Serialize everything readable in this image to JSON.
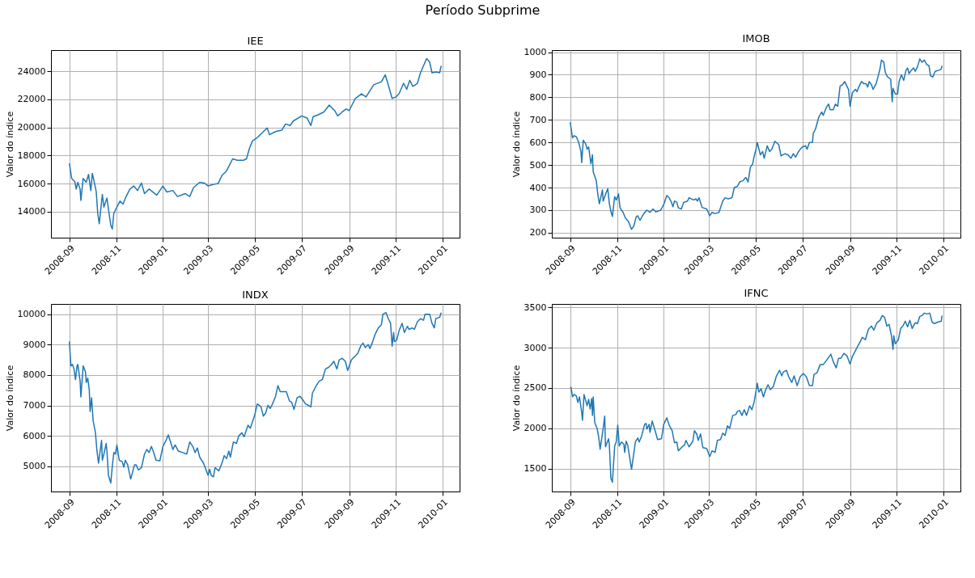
{
  "chart_data": [
    {
      "type": "line",
      "title": "IEE",
      "ylabel": "Valor do índice",
      "annotations": [
        "Período Subprime"
      ],
      "color": "#1f77b4",
      "grid": true,
      "x": [
        "2008-09-01",
        "2008-09-04",
        "2008-09-08",
        "2008-09-10",
        "2008-09-12",
        "2008-09-15",
        "2008-09-16",
        "2008-09-19",
        "2008-09-23",
        "2008-09-26",
        "2008-09-29",
        "2008-10-01",
        "2008-10-06",
        "2008-10-08",
        "2008-10-10",
        "2008-10-14",
        "2008-10-16",
        "2008-10-20",
        "2008-10-23",
        "2008-10-25",
        "2008-10-27",
        "2008-10-29",
        "2008-11-03",
        "2008-11-06",
        "2008-11-10",
        "2008-11-14",
        "2008-11-19",
        "2008-11-24",
        "2008-11-29",
        "2008-12-04",
        "2008-12-08",
        "2008-12-14",
        "2008-12-24",
        "2009-01-01",
        "2009-01-06",
        "2009-01-14",
        "2009-01-20",
        "2009-01-30",
        "2009-02-05",
        "2009-02-10",
        "2009-02-18",
        "2009-02-24",
        "2009-03-01",
        "2009-03-08",
        "2009-03-14",
        "2009-03-19",
        "2009-03-25",
        "2009-04-02",
        "2009-04-08",
        "2009-04-16",
        "2009-04-20",
        "2009-04-24",
        "2009-04-28",
        "2009-05-04",
        "2009-05-10",
        "2009-05-17",
        "2009-05-20",
        "2009-05-28",
        "2009-06-05",
        "2009-06-10",
        "2009-06-16",
        "2009-06-20",
        "2009-07-01",
        "2009-07-08",
        "2009-07-13",
        "2009-07-16",
        "2009-07-22",
        "2009-07-30",
        "2009-08-06",
        "2009-08-13",
        "2009-08-17",
        "2009-08-23",
        "2009-08-28",
        "2009-09-01",
        "2009-09-09",
        "2009-09-17",
        "2009-09-23",
        "2009-10-03",
        "2009-10-13",
        "2009-10-18",
        "2009-10-22",
        "2009-10-27",
        "2009-11-01",
        "2009-11-05",
        "2009-11-11",
        "2009-11-15",
        "2009-11-19",
        "2009-11-23",
        "2009-11-29",
        "2009-12-03",
        "2009-12-11",
        "2009-12-15",
        "2009-12-18",
        "2009-12-24",
        "2009-12-28",
        "2009-12-30"
      ],
      "values": [
        17440,
        16370,
        16150,
        15610,
        16090,
        15610,
        14800,
        16370,
        16090,
        16650,
        15500,
        16730,
        15440,
        13890,
        13140,
        15230,
        14320,
        14970,
        13790,
        13030,
        12770,
        13890,
        14430,
        14750,
        14540,
        15080,
        15610,
        15830,
        15500,
        16040,
        15290,
        15610,
        15180,
        15830,
        15400,
        15510,
        15080,
        15290,
        15080,
        15720,
        16090,
        16040,
        15830,
        15940,
        16000,
        16580,
        16900,
        17760,
        17660,
        17660,
        17760,
        18520,
        19050,
        19270,
        19590,
        19960,
        19480,
        19700,
        19800,
        20240,
        20130,
        20450,
        20820,
        20670,
        20130,
        20770,
        20880,
        21100,
        21590,
        21200,
        20820,
        21100,
        21310,
        21200,
        22060,
        22390,
        22170,
        23030,
        23250,
        23740,
        23030,
        22060,
        22170,
        22390,
        23140,
        22710,
        23350,
        22920,
        23140,
        23890,
        24900,
        24650,
        23890,
        23940,
        23890,
        24390
      ],
      "xlim": [
        "2008-08-08",
        "2010-01-23"
      ],
      "xticks": [
        "2008-09",
        "2008-11",
        "2009-01",
        "2009-03",
        "2009-05",
        "2009-07",
        "2009-09",
        "2009-11",
        "2010-01"
      ],
      "ylim": [
        12150,
        25500
      ],
      "yticks": [
        14000,
        16000,
        18000,
        20000,
        22000,
        24000
      ]
    },
    {
      "type": "line",
      "title": "IMOB",
      "ylabel": "Valor do índice",
      "color": "#1f77b4",
      "grid": true,
      "x": [
        "2008-09-01",
        "2008-09-04",
        "2008-09-06",
        "2008-09-09",
        "2008-09-12",
        "2008-09-15",
        "2008-09-16",
        "2008-09-18",
        "2008-09-21",
        "2008-09-23",
        "2008-09-25",
        "2008-09-28",
        "2008-09-30",
        "2008-10-01",
        "2008-10-05",
        "2008-10-07",
        "2008-10-09",
        "2008-10-13",
        "2008-10-14",
        "2008-10-17",
        "2008-10-20",
        "2008-10-22",
        "2008-10-24",
        "2008-10-26",
        "2008-10-29",
        "2008-10-31",
        "2008-11-03",
        "2008-11-05",
        "2008-11-09",
        "2008-11-12",
        "2008-11-16",
        "2008-11-20",
        "2008-11-23",
        "2008-11-26",
        "2008-11-28",
        "2008-12-01",
        "2008-12-06",
        "2008-12-10",
        "2008-12-14",
        "2008-12-18",
        "2008-12-22",
        "2008-12-28",
        "2009-01-01",
        "2009-01-05",
        "2009-01-08",
        "2009-01-11",
        "2009-01-13",
        "2009-01-15",
        "2009-01-18",
        "2009-01-20",
        "2009-01-24",
        "2009-01-27",
        "2009-02-01",
        "2009-02-03",
        "2009-02-09",
        "2009-02-12",
        "2009-02-14",
        "2009-02-16",
        "2009-02-20",
        "2009-02-26",
        "2009-03-02",
        "2009-03-05",
        "2009-03-09",
        "2009-03-14",
        "2009-03-19",
        "2009-03-22",
        "2009-03-26",
        "2009-03-31",
        "2009-04-03",
        "2009-04-07",
        "2009-04-10",
        "2009-04-14",
        "2009-04-18",
        "2009-04-21",
        "2009-04-24",
        "2009-04-27",
        "2009-04-29",
        "2009-05-01",
        "2009-05-03",
        "2009-05-07",
        "2009-05-10",
        "2009-05-12",
        "2009-05-16",
        "2009-05-19",
        "2009-05-22",
        "2009-05-26",
        "2009-05-31",
        "2009-06-03",
        "2009-06-08",
        "2009-06-12",
        "2009-06-16",
        "2009-06-19",
        "2009-06-22",
        "2009-06-25",
        "2009-06-28",
        "2009-07-01",
        "2009-07-05",
        "2009-07-07",
        "2009-07-10",
        "2009-07-14",
        "2009-07-15",
        "2009-07-18",
        "2009-07-22",
        "2009-07-26",
        "2009-07-28",
        "2009-08-01",
        "2009-08-04",
        "2009-08-06",
        "2009-08-10",
        "2009-08-13",
        "2009-08-16",
        "2009-08-19",
        "2009-08-22",
        "2009-08-25",
        "2009-08-30",
        "2009-09-01",
        "2009-09-04",
        "2009-09-08",
        "2009-09-10",
        "2009-09-13",
        "2009-09-16",
        "2009-09-19",
        "2009-09-22",
        "2009-09-24",
        "2009-09-26",
        "2009-09-29",
        "2009-10-01",
        "2009-10-05",
        "2009-10-07",
        "2009-10-10",
        "2009-10-12",
        "2009-10-15",
        "2009-10-17",
        "2009-10-20",
        "2009-10-24",
        "2009-10-26",
        "2009-10-27",
        "2009-10-30",
        "2009-11-02",
        "2009-11-04",
        "2009-11-07",
        "2009-11-10",
        "2009-11-13",
        "2009-11-15",
        "2009-11-17",
        "2009-11-20",
        "2009-11-23",
        "2009-11-25",
        "2009-11-28",
        "2009-12-01",
        "2009-12-04",
        "2009-12-07",
        "2009-12-10",
        "2009-12-13",
        "2009-12-15",
        "2009-12-18",
        "2009-12-21",
        "2009-12-26",
        "2009-12-29",
        "2009-12-30"
      ],
      "values": [
        690,
        620,
        630,
        625,
        600,
        560,
        510,
        610,
        595,
        570,
        580,
        505,
        545,
        470,
        430,
        370,
        328,
        390,
        340,
        370,
        395,
        330,
        295,
        272,
        360,
        345,
        372,
        310,
        290,
        265,
        250,
        215,
        230,
        270,
        275,
        255,
        285,
        300,
        290,
        305,
        292,
        300,
        325,
        365,
        355,
        335,
        315,
        340,
        335,
        310,
        305,
        335,
        340,
        355,
        345,
        350,
        340,
        355,
        312,
        305,
        275,
        290,
        285,
        290,
        340,
        355,
        350,
        355,
        400,
        405,
        425,
        430,
        445,
        425,
        490,
        505,
        540,
        565,
        600,
        545,
        560,
        530,
        585,
        560,
        570,
        605,
        590,
        540,
        550,
        545,
        530,
        550,
        535,
        555,
        570,
        580,
        585,
        570,
        600,
        600,
        640,
        660,
        710,
        735,
        720,
        755,
        770,
        745,
        745,
        770,
        760,
        850,
        855,
        870,
        835,
        760,
        820,
        835,
        825,
        850,
        870,
        860,
        860,
        845,
        870,
        855,
        835,
        860,
        885,
        925,
        965,
        955,
        910,
        890,
        880,
        780,
        840,
        815,
        815,
        870,
        900,
        875,
        920,
        930,
        905,
        920,
        930,
        915,
        935,
        970,
        955,
        965,
        945,
        940,
        895,
        890,
        915,
        920,
        925,
        940
      ],
      "xlim": [
        "2008-08-08",
        "2010-01-23"
      ],
      "xticks": [
        "2008-09",
        "2008-11",
        "2009-01",
        "2009-03",
        "2009-05",
        "2009-07",
        "2009-09",
        "2009-11",
        "2010-01"
      ],
      "ylim": [
        178,
        1009
      ],
      "yticks": [
        200,
        300,
        400,
        500,
        600,
        700,
        800,
        900,
        1000
      ]
    },
    {
      "type": "line",
      "title": "INDX",
      "ylabel": "Valor do índice",
      "color": "#1f77b4",
      "grid": true,
      "x": [
        "2008-09-01",
        "2008-09-03",
        "2008-09-05",
        "2008-09-07",
        "2008-09-09",
        "2008-09-11",
        "2008-09-12",
        "2008-09-15",
        "2008-09-16",
        "2008-09-19",
        "2008-09-22",
        "2008-09-23",
        "2008-09-25",
        "2008-09-27",
        "2008-09-28",
        "2008-09-30",
        "2008-10-02",
        "2008-10-05",
        "2008-10-07",
        "2008-10-09",
        "2008-10-13",
        "2008-10-14",
        "2008-10-16",
        "2008-10-19",
        "2008-10-20",
        "2008-10-22",
        "2008-10-25",
        "2008-10-27",
        "2008-10-29",
        "2008-10-31",
        "2008-11-02",
        "2008-11-05",
        "2008-11-09",
        "2008-11-11",
        "2008-11-13",
        "2008-11-16",
        "2008-11-20",
        "2008-11-25",
        "2008-11-27",
        "2008-11-30",
        "2008-12-04",
        "2008-12-08",
        "2008-12-11",
        "2008-12-14",
        "2008-12-17",
        "2008-12-20",
        "2008-12-23",
        "2008-12-28",
        "2009-01-01",
        "2009-01-05",
        "2009-01-08",
        "2009-01-11",
        "2009-01-14",
        "2009-01-17",
        "2009-01-21",
        "2009-01-27",
        "2009-02-01",
        "2009-02-05",
        "2009-02-09",
        "2009-02-12",
        "2009-02-15",
        "2009-02-18",
        "2009-02-23",
        "2009-03-01",
        "2009-03-03",
        "2009-03-05",
        "2009-03-08",
        "2009-03-10",
        "2009-03-15",
        "2009-03-19",
        "2009-03-22",
        "2009-03-25",
        "2009-03-28",
        "2009-03-30",
        "2009-04-03",
        "2009-04-07",
        "2009-04-10",
        "2009-04-14",
        "2009-04-17",
        "2009-04-22",
        "2009-04-25",
        "2009-05-01",
        "2009-05-04",
        "2009-05-07",
        "2009-05-09",
        "2009-05-12",
        "2009-05-15",
        "2009-05-18",
        "2009-05-21",
        "2009-05-24",
        "2009-05-28",
        "2009-05-31",
        "2009-06-03",
        "2009-06-07",
        "2009-06-11",
        "2009-06-15",
        "2009-06-18",
        "2009-06-21",
        "2009-06-25",
        "2009-06-29",
        "2009-07-02",
        "2009-07-06",
        "2009-07-10",
        "2009-07-13",
        "2009-07-15",
        "2009-07-20",
        "2009-07-24",
        "2009-07-28",
        "2009-08-01",
        "2009-08-05",
        "2009-08-09",
        "2009-08-12",
        "2009-08-16",
        "2009-08-19",
        "2009-08-23",
        "2009-08-27",
        "2009-08-30",
        "2009-09-04",
        "2009-09-08",
        "2009-09-12",
        "2009-09-16",
        "2009-09-19",
        "2009-09-22",
        "2009-09-26",
        "2009-09-28",
        "2009-10-01",
        "2009-10-05",
        "2009-10-09",
        "2009-10-13",
        "2009-10-15",
        "2009-10-19",
        "2009-10-22",
        "2009-10-25",
        "2009-10-27",
        "2009-10-29",
        "2009-10-30",
        "2009-11-02",
        "2009-11-05",
        "2009-11-09",
        "2009-11-12",
        "2009-11-16",
        "2009-11-18",
        "2009-11-22",
        "2009-11-25",
        "2009-11-29",
        "2009-12-03",
        "2009-12-07",
        "2009-12-09",
        "2009-12-15",
        "2009-12-18",
        "2009-12-21",
        "2009-12-23",
        "2009-12-28",
        "2009-12-30"
      ],
      "values": [
        9100,
        8300,
        8350,
        8200,
        7850,
        8300,
        8350,
        7800,
        7280,
        8300,
        8100,
        7750,
        7900,
        7500,
        6800,
        7250,
        6500,
        6100,
        5500,
        5100,
        5850,
        5200,
        5400,
        5750,
        5500,
        4700,
        4450,
        5000,
        5450,
        5400,
        5700,
        5200,
        5150,
        4970,
        5200,
        5050,
        4580,
        5050,
        5050,
        4880,
        4950,
        5400,
        5550,
        5450,
        5650,
        5450,
        5200,
        5180,
        5650,
        5850,
        6030,
        5800,
        5550,
        5700,
        5500,
        5450,
        5400,
        5800,
        5650,
        5450,
        5600,
        5300,
        5100,
        4700,
        4900,
        4700,
        4650,
        4950,
        4850,
        5100,
        5350,
        5250,
        5500,
        5300,
        5800,
        5750,
        6000,
        6100,
        5970,
        6350,
        6250,
        6700,
        7050,
        7000,
        6950,
        6650,
        6750,
        7000,
        6900,
        7050,
        7300,
        7650,
        7450,
        7450,
        7450,
        7150,
        7100,
        6870,
        7250,
        7300,
        7200,
        7050,
        7000,
        6950,
        7400,
        7650,
        7800,
        7850,
        8200,
        8250,
        8350,
        8450,
        8200,
        8500,
        8550,
        8450,
        8150,
        8500,
        8600,
        8700,
        8950,
        9050,
        8900,
        9000,
        8870,
        9050,
        9350,
        9550,
        9650,
        10000,
        10050,
        9850,
        9700,
        8950,
        9400,
        9100,
        9150,
        9450,
        9700,
        9400,
        9600,
        9500,
        9550,
        9500,
        9750,
        9850,
        9800,
        10000,
        10000,
        9700,
        9550,
        9850,
        9900,
        10050
      ],
      "xlim": [
        "2008-08-08",
        "2010-01-23"
      ],
      "xticks": [
        "2008-09",
        "2008-11",
        "2009-01",
        "2009-03",
        "2009-05",
        "2009-07",
        "2009-09",
        "2009-11",
        "2010-01"
      ],
      "ylim": [
        4170,
        10336
      ],
      "yticks": [
        5000,
        6000,
        7000,
        8000,
        9000,
        10000
      ]
    },
    {
      "type": "line",
      "title": "IFNC",
      "ylabel": "Valor do índice",
      "color": "#1f77b4",
      "grid": true,
      "x": [
        "2008-09-01",
        "2008-09-02",
        "2008-09-04",
        "2008-09-06",
        "2008-09-09",
        "2008-09-11",
        "2008-09-13",
        "2008-09-15",
        "2008-09-16",
        "2008-09-17",
        "2008-09-19",
        "2008-09-23",
        "2008-09-25",
        "2008-09-27",
        "2008-09-29",
        "2008-09-30",
        "2008-10-01",
        "2008-10-03",
        "2008-10-06",
        "2008-10-08",
        "2008-10-10",
        "2008-10-14",
        "2008-10-16",
        "2008-10-17",
        "2008-10-21",
        "2008-10-22",
        "2008-10-24",
        "2008-10-26",
        "2008-10-29",
        "2008-10-31",
        "2008-11-02",
        "2008-11-04",
        "2008-11-07",
        "2008-11-10",
        "2008-11-11",
        "2008-11-13",
        "2008-11-15",
        "2008-11-20",
        "2008-11-25",
        "2008-11-28",
        "2008-11-30",
        "2008-12-03",
        "2008-12-07",
        "2008-12-09",
        "2008-12-10",
        "2008-12-13",
        "2008-12-14",
        "2008-12-17",
        "2008-12-21",
        "2008-12-24",
        "2008-12-29",
        "2009-01-01",
        "2009-01-05",
        "2009-01-08",
        "2009-01-12",
        "2009-01-15",
        "2009-01-18",
        "2009-01-20",
        "2009-01-25",
        "2009-01-28",
        "2009-01-30",
        "2009-02-03",
        "2009-02-08",
        "2009-02-10",
        "2009-02-13",
        "2009-02-15",
        "2009-02-18",
        "2009-02-21",
        "2009-02-26",
        "2009-03-02",
        "2009-03-05",
        "2009-03-09",
        "2009-03-12",
        "2009-03-16",
        "2009-03-19",
        "2009-03-22",
        "2009-03-25",
        "2009-03-28",
        "2009-04-01",
        "2009-04-05",
        "2009-04-07",
        "2009-04-10",
        "2009-04-13",
        "2009-04-16",
        "2009-04-19",
        "2009-04-23",
        "2009-04-26",
        "2009-04-29",
        "2009-05-02",
        "2009-05-03",
        "2009-05-05",
        "2009-05-08",
        "2009-05-11",
        "2009-05-14",
        "2009-05-17",
        "2009-05-20",
        "2009-05-24",
        "2009-05-28",
        "2009-06-01",
        "2009-06-04",
        "2009-06-06",
        "2009-06-10",
        "2009-06-13",
        "2009-06-17",
        "2009-06-20",
        "2009-06-24",
        "2009-06-28",
        "2009-07-02",
        "2009-07-06",
        "2009-07-10",
        "2009-07-14",
        "2009-07-16",
        "2009-07-20",
        "2009-07-24",
        "2009-07-28",
        "2009-08-01",
        "2009-08-04",
        "2009-08-07",
        "2009-08-10",
        "2009-08-14",
        "2009-08-17",
        "2009-08-20",
        "2009-08-24",
        "2009-08-28",
        "2009-09-01",
        "2009-09-04",
        "2009-09-10",
        "2009-09-14",
        "2009-09-17",
        "2009-09-21",
        "2009-09-25",
        "2009-09-29",
        "2009-10-02",
        "2009-10-06",
        "2009-10-10",
        "2009-10-13",
        "2009-10-16",
        "2009-10-19",
        "2009-10-22",
        "2009-10-25",
        "2009-10-27",
        "2009-10-28",
        "2009-10-30",
        "2009-11-03",
        "2009-11-06",
        "2009-11-09",
        "2009-11-12",
        "2009-11-15",
        "2009-11-18",
        "2009-11-21",
        "2009-11-25",
        "2009-11-28",
        "2009-12-01",
        "2009-12-04",
        "2009-12-07",
        "2009-12-10",
        "2009-12-14",
        "2009-12-17",
        "2009-12-20",
        "2009-12-25",
        "2009-12-29",
        "2009-12-30"
      ],
      "values": [
        2500,
        2510,
        2390,
        2420,
        2400,
        2320,
        2390,
        2260,
        2200,
        2100,
        2420,
        2280,
        2360,
        2240,
        2370,
        2160,
        2390,
        2070,
        2000,
        1900,
        1740,
        2000,
        2150,
        1770,
        1870,
        1800,
        1380,
        1330,
        1780,
        1830,
        2040,
        1780,
        1830,
        1800,
        1700,
        1840,
        1790,
        1490,
        1830,
        1880,
        1830,
        1900,
        2050,
        2060,
        1990,
        2050,
        1950,
        2090,
        1960,
        1860,
        1870,
        2050,
        2130,
        2040,
        1970,
        1820,
        1830,
        1720,
        1770,
        1790,
        1850,
        1770,
        1840,
        1970,
        1930,
        1850,
        1930,
        1760,
        1750,
        1650,
        1720,
        1700,
        1850,
        1860,
        1940,
        1910,
        2030,
        2000,
        2160,
        2170,
        2210,
        2220,
        2160,
        2230,
        2160,
        2280,
        2230,
        2330,
        2500,
        2560,
        2450,
        2490,
        2390,
        2480,
        2540,
        2480,
        2520,
        2650,
        2720,
        2650,
        2700,
        2720,
        2640,
        2570,
        2650,
        2530,
        2640,
        2680,
        2640,
        2530,
        2530,
        2670,
        2690,
        2790,
        2790,
        2840,
        2880,
        2920,
        2830,
        2750,
        2870,
        2870,
        2930,
        2900,
        2800,
        2890,
        3000,
        3070,
        3130,
        3100,
        3230,
        3270,
        3220,
        3310,
        3340,
        3400,
        3380,
        3270,
        3290,
        3150,
        2980,
        3150,
        3050,
        3100,
        3240,
        3270,
        3330,
        3260,
        3340,
        3240,
        3310,
        3300,
        3390,
        3400,
        3430,
        3420,
        3430,
        3320,
        3300,
        3320,
        3330,
        3400
      ],
      "xlim": [
        "2008-08-08",
        "2010-01-23"
      ],
      "xticks": [
        "2008-09",
        "2008-11",
        "2009-01",
        "2009-03",
        "2009-05",
        "2009-07",
        "2009-09",
        "2009-11",
        "2010-01"
      ],
      "ylim": [
        1215,
        3544
      ],
      "yticks": [
        1500,
        2000,
        2500,
        3000,
        3500
      ]
    }
  ]
}
